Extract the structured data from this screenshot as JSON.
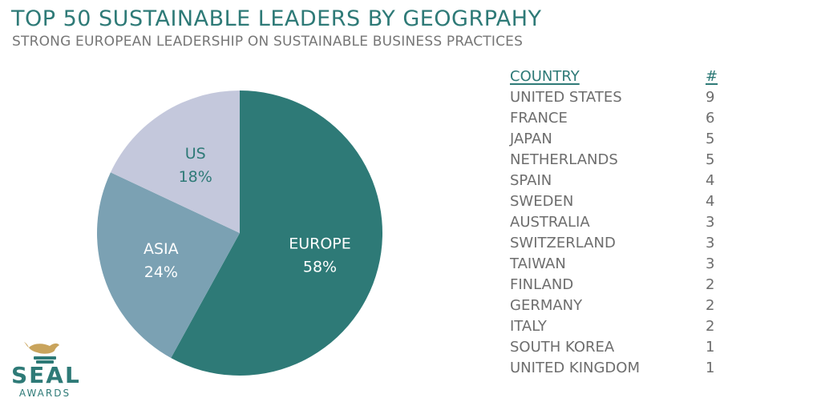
{
  "header": {
    "title": "TOP 50 SUSTAINABLE LEADERS BY GEOGRPAHY",
    "subtitle": "STRONG EUROPEAN LEADERSHIP ON SUSTAINABLE BUSINESS PRACTICES"
  },
  "chart_data": {
    "type": "pie",
    "title": "TOP 50 SUSTAINABLE LEADERS BY GEOGRPAHY",
    "slices": [
      {
        "label": "EUROPE",
        "value": 58,
        "display": "58%",
        "color": "#2e7a77",
        "text_color": "#ffffff"
      },
      {
        "label": "ASIA",
        "value": 24,
        "display": "24%",
        "color": "#7ba1b3",
        "text_color": "#ffffff"
      },
      {
        "label": "US",
        "value": 18,
        "display": "18%",
        "color": "#c4c8dc",
        "text_color": "#2e7a77"
      }
    ]
  },
  "table": {
    "header": {
      "country": "COUNTRY",
      "count": "#"
    },
    "rows": [
      {
        "country": "UNITED STATES",
        "count": "9"
      },
      {
        "country": "FRANCE",
        "count": "6"
      },
      {
        "country": "JAPAN",
        "count": "5"
      },
      {
        "country": "NETHERLANDS",
        "count": "5"
      },
      {
        "country": "SPAIN",
        "count": "4"
      },
      {
        "country": "SWEDEN",
        "count": "4"
      },
      {
        "country": "AUSTRALIA",
        "count": "3"
      },
      {
        "country": "SWITZERLAND",
        "count": "3"
      },
      {
        "country": "TAIWAN",
        "count": "3"
      },
      {
        "country": "FINLAND",
        "count": "2"
      },
      {
        "country": "GERMANY",
        "count": "2"
      },
      {
        "country": "ITALY",
        "count": "2"
      },
      {
        "country": "SOUTH KOREA",
        "count": "1"
      },
      {
        "country": "UNITED KINGDOM",
        "count": "1"
      }
    ]
  },
  "logo": {
    "name": "SEAL",
    "tagline": "AWARDS",
    "icon": "seal-icon",
    "color": "#2e7a77",
    "accent": "#c9a45c"
  }
}
